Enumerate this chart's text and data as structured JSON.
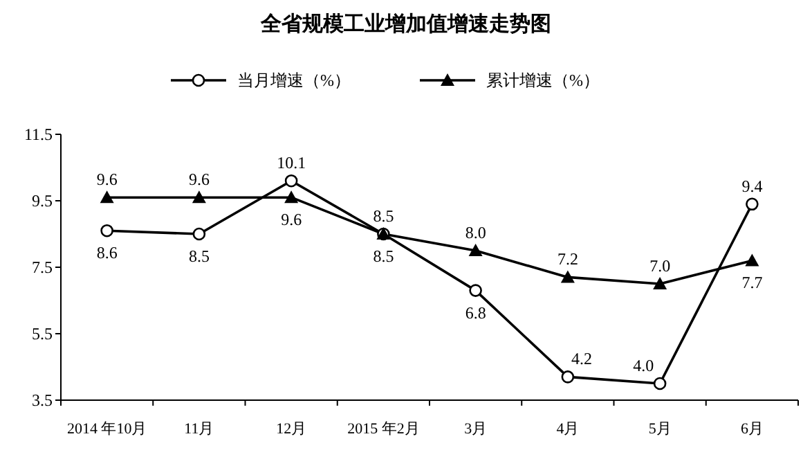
{
  "chart_data": {
    "type": "line",
    "title": "全省规模工业增加值增速走势图",
    "categories": [
      "2014 年10月",
      "11月",
      "12月",
      "2015 年2月",
      "3月",
      "4月",
      "5月",
      "6月"
    ],
    "series": [
      {
        "name": "当月增速（%）",
        "color": "#000000",
        "marker": "circle",
        "values": [
          8.6,
          8.5,
          10.1,
          8.5,
          6.8,
          4.2,
          4.0,
          9.4
        ],
        "value_labels": [
          "8.6",
          "8.5",
          "10.1",
          "8.5",
          "6.8",
          "4.2",
          "4.0",
          "9.4"
        ]
      },
      {
        "name": "累计增速（%）",
        "color": "#000000",
        "marker": "triangle",
        "values": [
          9.6,
          9.6,
          9.6,
          8.5,
          8.0,
          7.2,
          7.0,
          7.7
        ],
        "value_labels": [
          "9.6",
          "9.6",
          "9.6",
          "8.5",
          "8.0",
          "7.2",
          "7.0",
          "7.7"
        ]
      }
    ],
    "ylim": [
      3.5,
      11.5
    ],
    "yticks": [
      3.5,
      5.5,
      7.5,
      9.5,
      11.5
    ],
    "legend": "top",
    "grid": false
  }
}
